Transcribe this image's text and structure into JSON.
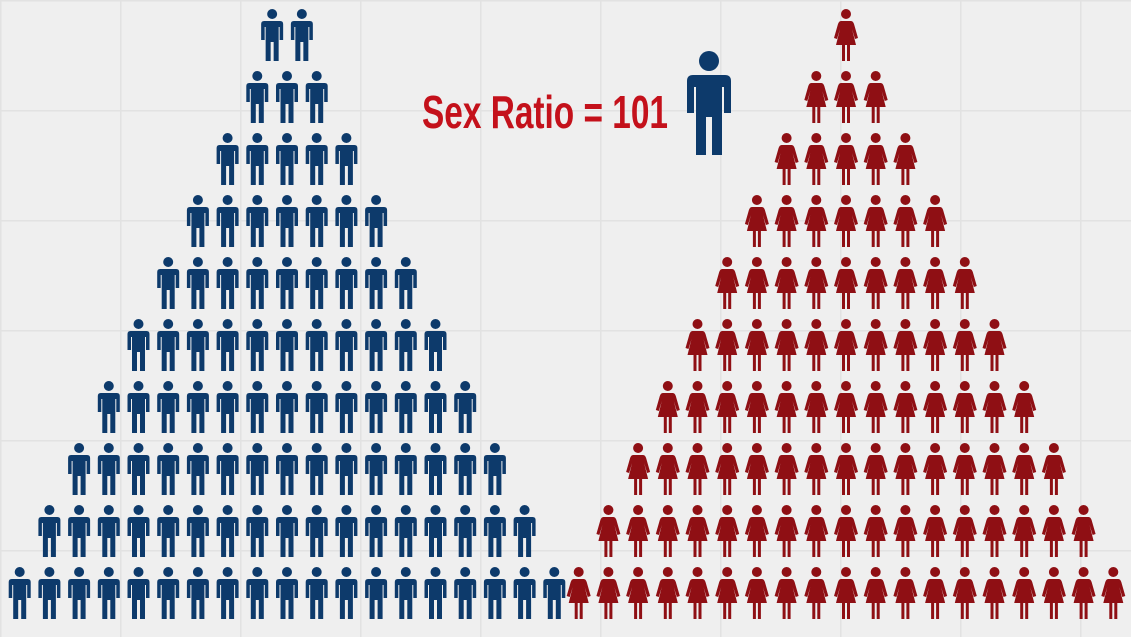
{
  "title": "Sex Ratio = 101",
  "male_rows": [
    2,
    3,
    5,
    7,
    9,
    11,
    13,
    15,
    17,
    19
  ],
  "female_rows": [
    1,
    3,
    5,
    7,
    9,
    11,
    13,
    15,
    17,
    19
  ],
  "male_color": "#0d3a6b",
  "female_color": "#8f0f14"
}
